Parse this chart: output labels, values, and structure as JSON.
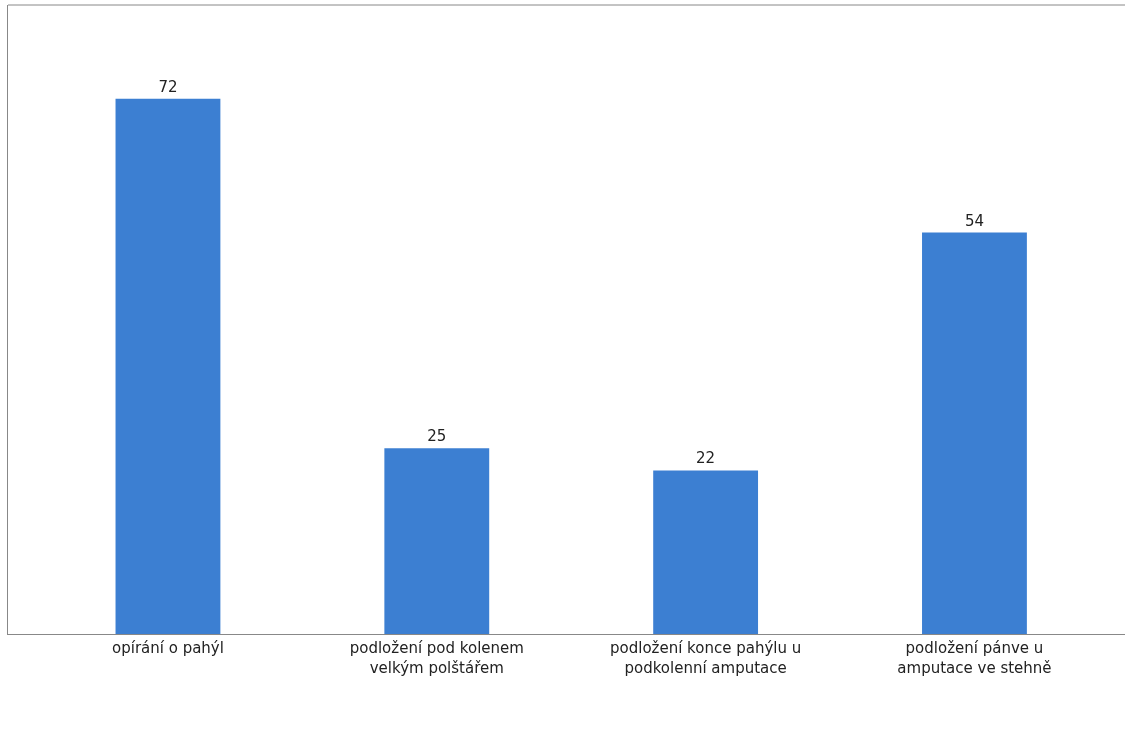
{
  "chart_data": {
    "type": "bar",
    "categories": [
      "opírání o pahýl",
      "podložení pod kolenem velkým polštářem",
      "podložení konce pahýlu u podkolenní amputace",
      "podložení pánve u amputace ve stehně"
    ],
    "values": [
      72,
      25,
      22,
      54
    ],
    "color": "#3c7fd2",
    "data_labels": true,
    "legend": false
  }
}
